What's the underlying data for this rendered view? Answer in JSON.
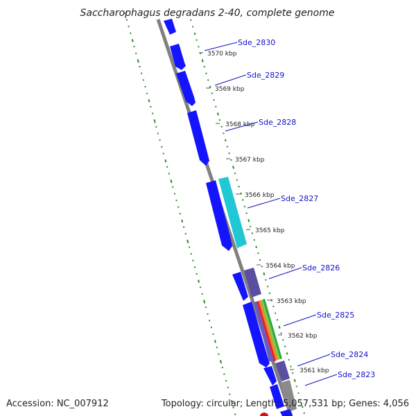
{
  "title": "Saccharophagus degradans 2-40, complete genome",
  "footer": {
    "accession": "Accession: NC_007912",
    "summary": "Topology: circular; Length: 5,057,531 bp; Genes: 4,056"
  },
  "colors": {
    "backbone": "#808080",
    "cds_forward": "#1414ff",
    "cds_cyan": "#20c8d4",
    "cds_purple": "#5a4ea0",
    "cds_gray": "#8a8a8a",
    "gc_ticks": "#2a8a22",
    "gene_label": "#1010c8",
    "label_line": "#1010c8",
    "accent_red": "#dd1010"
  },
  "kbp_labels": [
    "3570 kbp",
    "3569 kbp",
    "3568 kbp",
    "3567 kbp",
    "3566 kbp",
    "3565 kbp",
    "3564 kbp",
    "3563 kbp",
    "3562 kbp",
    "3561 kbp"
  ],
  "gene_labels": [
    "Sde_2830",
    "Sde_2829",
    "Sde_2828",
    "Sde_2827",
    "Sde_2826",
    "Sde_2825",
    "Sde_2824",
    "Sde_2823"
  ]
}
